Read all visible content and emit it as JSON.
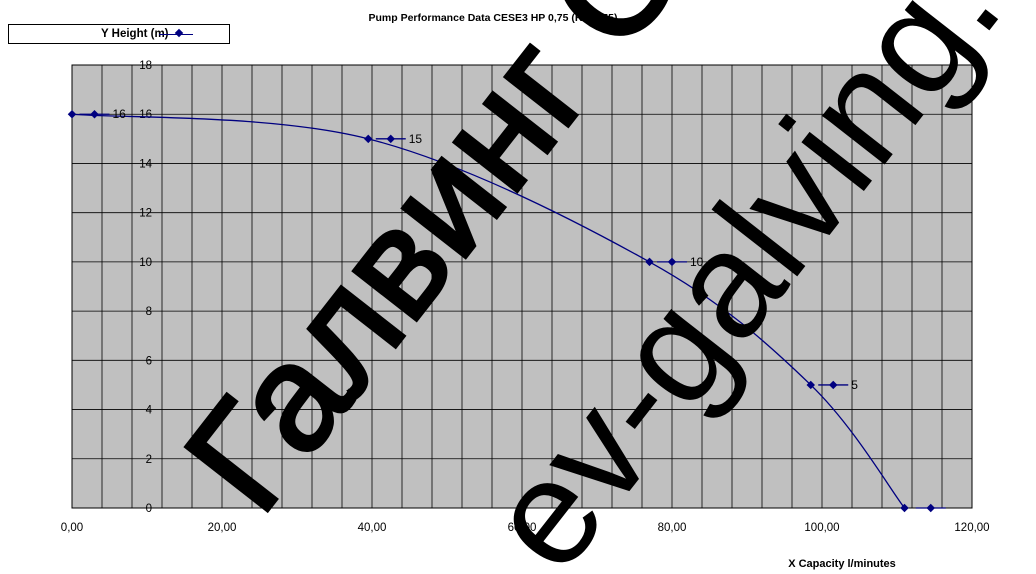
{
  "chart_data": {
    "type": "line",
    "title": "Pump Performance Data CESE3 HP 0,75 (Kw 0,55)",
    "xlabel": "X Capacity  l/minutes",
    "legend": "Y Height (m)",
    "xlim": [
      0,
      120
    ],
    "ylim": [
      0,
      18
    ],
    "x_ticks": [
      "0,00",
      "20,00",
      "40,00",
      "60,00",
      "80,00",
      "100,00",
      "120,00"
    ],
    "y_ticks": [
      "0",
      "2",
      "4",
      "6",
      "8",
      "10",
      "12",
      "14",
      "16",
      "18"
    ],
    "grid": true,
    "legend_position": "top-left",
    "series": [
      {
        "name": "Y Height (m)",
        "color": "#000080",
        "points": [
          {
            "x": 0,
            "y": 16
          },
          {
            "x": 39.5,
            "y": 15
          },
          {
            "x": 77,
            "y": 10
          },
          {
            "x": 98.5,
            "y": 5
          },
          {
            "x": 111,
            "y": 0
          }
        ]
      }
    ],
    "label_markers": [
      {
        "x": 3,
        "y": 16,
        "label": "16"
      },
      {
        "x": 42.5,
        "y": 15,
        "label": "15"
      },
      {
        "x": 80,
        "y": 10,
        "label": "10"
      },
      {
        "x": 101.5,
        "y": 5,
        "label": "5"
      },
      {
        "x": 114.5,
        "y": 0,
        "label": ""
      }
    ]
  },
  "watermarks": [
    "Галвинг ООД",
    "galving.com",
    "ev-galving."
  ]
}
